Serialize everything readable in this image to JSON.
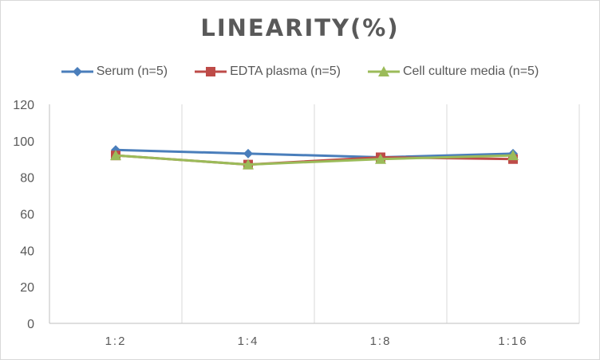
{
  "chart_data": {
    "type": "line",
    "title": "LINEARITY(%)",
    "categories": [
      "1:2",
      "1:4",
      "1:8",
      "1:16"
    ],
    "series": [
      {
        "name": "Serum (n=5)",
        "values": [
          95,
          93,
          91,
          93
        ],
        "color": "#4a7ebb",
        "marker": "diamond"
      },
      {
        "name": "EDTA plasma (n=5)",
        "values": [
          92,
          87,
          91,
          90
        ],
        "color": "#be4b48",
        "marker": "square"
      },
      {
        "name": "Cell culture media (n=5)",
        "values": [
          92,
          87,
          90,
          92
        ],
        "color": "#9bbb59",
        "marker": "triangle"
      }
    ],
    "xlabel": "",
    "ylabel": "",
    "ylim": [
      0,
      120
    ],
    "yticks": [
      0,
      20,
      40,
      60,
      80,
      100,
      120
    ],
    "grid": "vertical",
    "legend_position": "top"
  }
}
